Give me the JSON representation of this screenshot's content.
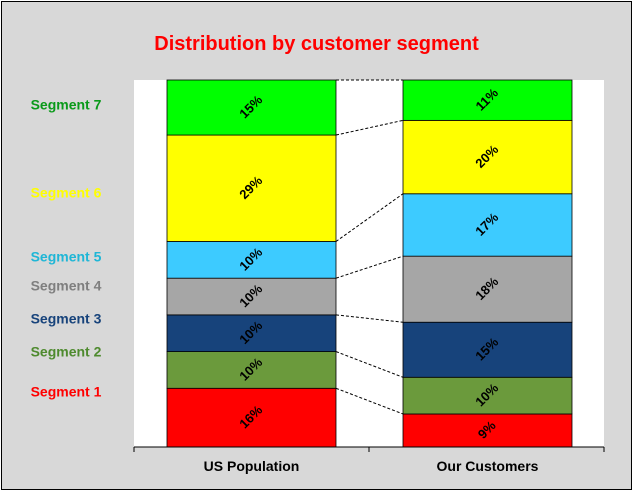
{
  "chart_data": {
    "type": "bar",
    "stacked": true,
    "percent": true,
    "title": "Distribution by customer segment",
    "categories": [
      "US Population",
      "Our Customers"
    ],
    "series": [
      {
        "name": "Segment 1",
        "color": "#ff0000",
        "values": [
          16,
          9
        ]
      },
      {
        "name": "Segment 2",
        "color": "#6b9a3c",
        "values": [
          10,
          10
        ]
      },
      {
        "name": "Segment 3",
        "color": "#17437b",
        "values": [
          10,
          15
        ]
      },
      {
        "name": "Segment 4",
        "color": "#a6a6a6",
        "values": [
          10,
          18
        ]
      },
      {
        "name": "Segment 5",
        "color": "#3dcbff",
        "values": [
          10,
          17
        ]
      },
      {
        "name": "Segment 6",
        "color": "#ffff00",
        "values": [
          29,
          20
        ]
      },
      {
        "name": "Segment 7",
        "color": "#00ff00",
        "values": [
          15,
          11
        ]
      }
    ],
    "value_labels": [
      [
        "16%",
        "9%"
      ],
      [
        "10%",
        "10%"
      ],
      [
        "10%",
        "15%"
      ],
      [
        "10%",
        "18%"
      ],
      [
        "10%",
        "17%"
      ],
      [
        "29%",
        "20%"
      ],
      [
        "15%",
        "11%"
      ]
    ],
    "label_colors": [
      "#ff0000",
      "#4e8a2e",
      "#17437b",
      "#7f7f7f",
      "#1fb6d6",
      "#ffff00",
      "#0a9a1a"
    ],
    "ylim": [
      0,
      100
    ],
    "legend": "left",
    "connector_lines": true
  }
}
